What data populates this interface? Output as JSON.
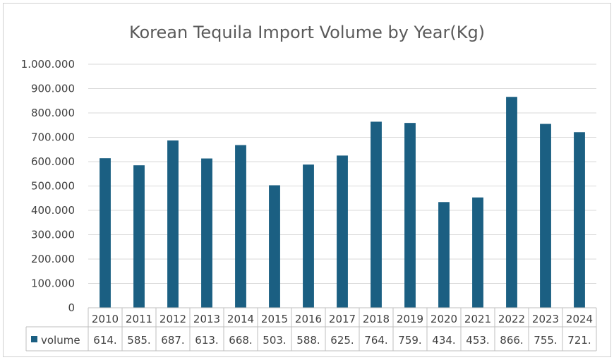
{
  "chart_data": {
    "type": "bar",
    "title": "Korean Tequila Import Volume by Year(Kg)",
    "categories": [
      "2010",
      "2011",
      "2012",
      "2013",
      "2014",
      "2015",
      "2016",
      "2017",
      "2018",
      "2019",
      "2020",
      "2021",
      "2022",
      "2023",
      "2024"
    ],
    "series": [
      {
        "name": "volume",
        "color": "#1b5f82",
        "values": [
          614000,
          585000,
          687000,
          613000,
          668000,
          503000,
          588000,
          625000,
          764000,
          759000,
          434000,
          453000,
          866000,
          755000,
          721000
        ],
        "table_labels": [
          "614.",
          "585.",
          "687.",
          "613.",
          "668.",
          "503.",
          "588.",
          "625.",
          "764.",
          "759.",
          "434.",
          "453.",
          "866.",
          "755.",
          "721."
        ]
      }
    ],
    "ylim": [
      0,
      1000000
    ],
    "yticks": [
      0,
      100000,
      200000,
      300000,
      400000,
      500000,
      600000,
      700000,
      800000,
      900000,
      1000000
    ],
    "ytick_labels": [
      "0",
      "100.000",
      "200.000",
      "300.000",
      "400.000",
      "500.000",
      "600.000",
      "700.000",
      "800.000",
      "900.000",
      "1.000.000"
    ],
    "grid": true,
    "data_table": true
  }
}
